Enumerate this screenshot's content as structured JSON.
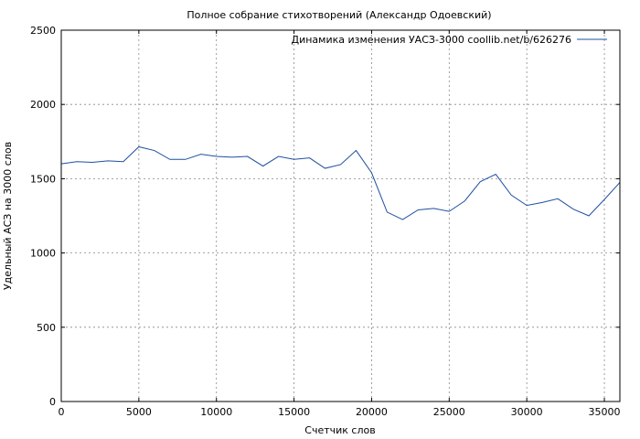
{
  "chart_data": {
    "type": "line",
    "title": "Полное собрание стихотворений (Александр Одоевский)",
    "xlabel": "Счетчик слов",
    "ylabel": "Удельный АСЗ на 3000 слов",
    "xlim": [
      0,
      36000
    ],
    "ylim": [
      0,
      2500
    ],
    "xticks": [
      "0",
      "5000",
      "10000",
      "15000",
      "20000",
      "25000",
      "30000",
      "35000"
    ],
    "yticks": [
      "0",
      "500",
      "1000",
      "1500",
      "2000",
      "2500"
    ],
    "grid": true,
    "legend_position": "top-right",
    "series": [
      {
        "name": "Динамика изменения УАСЗ-3000 coollib.net/b/626276",
        "color": "#1f4fa0",
        "x": [
          0,
          1000,
          2000,
          3000,
          4000,
          5000,
          6000,
          7000,
          8000,
          9000,
          10000,
          11000,
          12000,
          13000,
          14000,
          15000,
          16000,
          17000,
          18000,
          19000,
          20000,
          21000,
          22000,
          23000,
          24000,
          25000,
          26000,
          27000,
          28000,
          29000,
          30000,
          31000,
          32000,
          33000,
          34000,
          35000,
          36000
        ],
        "y": [
          1600,
          1615,
          1610,
          1620,
          1615,
          1715,
          1690,
          1630,
          1630,
          1665,
          1650,
          1645,
          1650,
          1585,
          1650,
          1630,
          1640,
          1570,
          1595,
          1690,
          1540,
          1275,
          1225,
          1290,
          1300,
          1280,
          1350,
          1480,
          1530,
          1390,
          1320,
          1340,
          1365,
          1295,
          1250,
          1360,
          1475
        ]
      }
    ]
  }
}
